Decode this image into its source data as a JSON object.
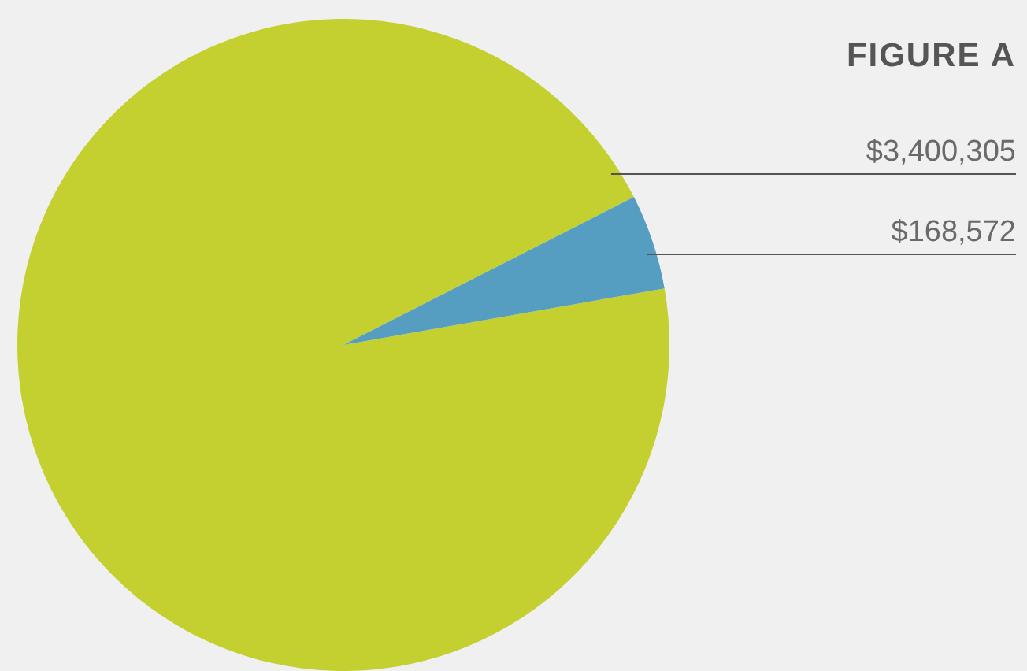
{
  "chart_data": {
    "type": "pie",
    "title": "FIGURE A",
    "categories": [
      null,
      null
    ],
    "values": [
      3400305,
      168572
    ],
    "colors": [
      "#c4d02f",
      "#559ec1"
    ],
    "value_labels": [
      "$3,400,305",
      "$168,572"
    ],
    "legend": false
  }
}
